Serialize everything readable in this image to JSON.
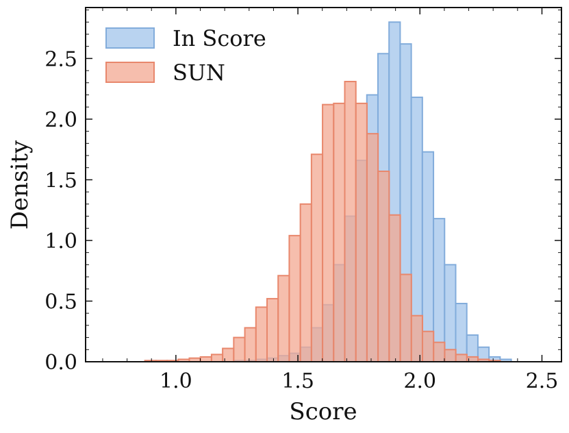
{
  "chart_data": {
    "type": "histogram",
    "xlabel": "Score",
    "ylabel": "Density",
    "xlim": [
      0.63,
      2.58
    ],
    "ylim": [
      0,
      2.92
    ],
    "xticks": [
      "1.0",
      "1.5",
      "2.0",
      "2.5"
    ],
    "xtick_values": [
      1.0,
      1.5,
      2.0,
      2.5
    ],
    "yticks": [
      "0.0",
      "0.5",
      "1.0",
      "1.5",
      "2.0",
      "2.5"
    ],
    "ytick_values": [
      0.0,
      0.5,
      1.0,
      1.5,
      2.0,
      2.5
    ],
    "grid": false,
    "legend_position": "top-left",
    "series": [
      {
        "name": "In Score",
        "color": "#a8c8ec",
        "edge_color": "#82acdb",
        "bin_start": 1.1,
        "bin_width": 0.0455,
        "values": [
          0.0,
          0.0,
          0.0,
          0.01,
          0.01,
          0.02,
          0.03,
          0.05,
          0.07,
          0.12,
          0.28,
          0.47,
          0.8,
          1.2,
          1.66,
          2.2,
          2.54,
          2.8,
          2.62,
          2.18,
          1.73,
          1.18,
          0.8,
          0.48,
          0.22,
          0.12,
          0.04,
          0.02
        ]
      },
      {
        "name": "SUN",
        "color": "#f3a892",
        "edge_color": "#e8876c",
        "bin_start": 0.873,
        "bin_width": 0.0455,
        "values": [
          0.01,
          0.01,
          0.01,
          0.02,
          0.03,
          0.04,
          0.06,
          0.11,
          0.2,
          0.28,
          0.45,
          0.52,
          0.71,
          1.04,
          1.3,
          1.71,
          2.12,
          2.13,
          2.31,
          2.13,
          1.88,
          1.57,
          1.21,
          0.72,
          0.38,
          0.25,
          0.16,
          0.1,
          0.06,
          0.04,
          0.02,
          0.01
        ]
      }
    ]
  }
}
